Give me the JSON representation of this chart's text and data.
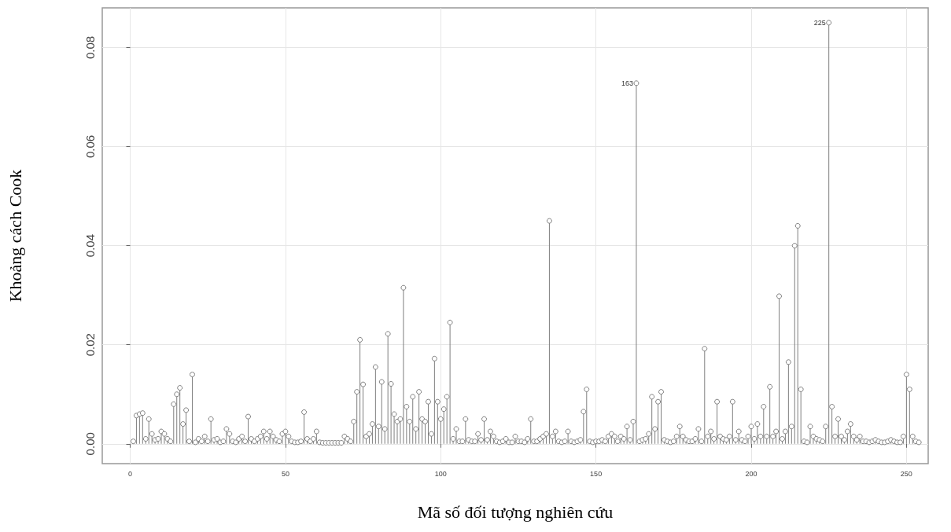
{
  "chart_data": {
    "type": "lollipop",
    "xlabel": "Mã số đối tượng nghiên cứu",
    "ylabel": "Khoảng cách Cook",
    "x": [
      1,
      2,
      3,
      4,
      5,
      6,
      7,
      8,
      9,
      10,
      11,
      12,
      13,
      14,
      15,
      16,
      17,
      18,
      19,
      20,
      21,
      22,
      23,
      24,
      25,
      26,
      27,
      28,
      29,
      30,
      31,
      32,
      33,
      34,
      35,
      36,
      37,
      38,
      39,
      40,
      41,
      42,
      43,
      44,
      45,
      46,
      47,
      48,
      49,
      50,
      51,
      52,
      53,
      54,
      55,
      56,
      57,
      58,
      59,
      60,
      61,
      62,
      63,
      64,
      65,
      66,
      67,
      68,
      69,
      70,
      71,
      72,
      73,
      74,
      75,
      76,
      77,
      78,
      79,
      80,
      81,
      82,
      83,
      84,
      85,
      86,
      87,
      88,
      89,
      90,
      91,
      92,
      93,
      94,
      95,
      96,
      97,
      98,
      99,
      100,
      101,
      102,
      103,
      104,
      105,
      106,
      107,
      108,
      109,
      110,
      111,
      112,
      113,
      114,
      115,
      116,
      117,
      118,
      119,
      120,
      121,
      122,
      123,
      124,
      125,
      126,
      127,
      128,
      129,
      130,
      131,
      132,
      133,
      134,
      135,
      136,
      137,
      138,
      139,
      140,
      141,
      142,
      143,
      144,
      145,
      146,
      147,
      148,
      149,
      150,
      151,
      152,
      153,
      154,
      155,
      156,
      157,
      158,
      159,
      160,
      161,
      162,
      163,
      164,
      165,
      166,
      167,
      168,
      169,
      170,
      171,
      172,
      173,
      174,
      175,
      176,
      177,
      178,
      179,
      180,
      181,
      182,
      183,
      184,
      185,
      186,
      187,
      188,
      189,
      190,
      191,
      192,
      193,
      194,
      195,
      196,
      197,
      198,
      199,
      200,
      201,
      202,
      203,
      204,
      205,
      206,
      207,
      208,
      209,
      210,
      211,
      212,
      213,
      214,
      215,
      216,
      217,
      218,
      219,
      220,
      221,
      222,
      223,
      224,
      225,
      226,
      227,
      228,
      229,
      230,
      231,
      232,
      233,
      234,
      235,
      236,
      237,
      238,
      239,
      240,
      241,
      242,
      243,
      244,
      245,
      246,
      247,
      248,
      249,
      250,
      251,
      252,
      253,
      254
    ],
    "values": [
      0.0005,
      0.0057,
      0.006,
      0.0062,
      0.001,
      0.005,
      0.002,
      0.0008,
      0.001,
      0.0025,
      0.002,
      0.001,
      0.0005,
      0.008,
      0.01,
      0.0113,
      0.004,
      0.0068,
      0.0005,
      0.014,
      0.0003,
      0.001,
      0.0005,
      0.0015,
      0.0005,
      0.005,
      0.0008,
      0.001,
      0.0003,
      0.0005,
      0.003,
      0.002,
      0.0005,
      0.0003,
      0.001,
      0.0015,
      0.0005,
      0.0055,
      0.001,
      0.0005,
      0.001,
      0.0015,
      0.0025,
      0.001,
      0.0025,
      0.0015,
      0.0008,
      0.0005,
      0.002,
      0.0025,
      0.0015,
      0.0005,
      0.0003,
      0.0003,
      0.0005,
      0.0064,
      0.001,
      0.0005,
      0.001,
      0.0025,
      0.0003,
      0.0002,
      0.0002,
      0.0002,
      0.0002,
      0.0002,
      0.0002,
      0.0002,
      0.0015,
      0.001,
      0.0005,
      0.0045,
      0.0105,
      0.021,
      0.012,
      0.0015,
      0.002,
      0.004,
      0.0155,
      0.0035,
      0.0125,
      0.003,
      0.0222,
      0.0121,
      0.006,
      0.0045,
      0.005,
      0.0315,
      0.0075,
      0.0045,
      0.0095,
      0.003,
      0.0105,
      0.005,
      0.0045,
      0.0085,
      0.002,
      0.0172,
      0.0085,
      0.005,
      0.007,
      0.0095,
      0.0245,
      0.001,
      0.003,
      0.0005,
      0.0005,
      0.005,
      0.0008,
      0.0005,
      0.0005,
      0.002,
      0.0008,
      0.005,
      0.0008,
      0.0025,
      0.0015,
      0.0005,
      0.0003,
      0.0005,
      0.001,
      0.0003,
      0.0003,
      0.0015,
      0.0005,
      0.0005,
      0.0003,
      0.001,
      0.005,
      0.0005,
      0.0005,
      0.001,
      0.0015,
      0.002,
      0.045,
      0.0015,
      0.0025,
      0.0005,
      0.0003,
      0.0005,
      0.0025,
      0.0005,
      0.0003,
      0.0005,
      0.0008,
      0.0065,
      0.011,
      0.0005,
      0.0003,
      0.0005,
      0.0005,
      0.0008,
      0.0005,
      0.0015,
      0.002,
      0.0015,
      0.0005,
      0.0015,
      0.001,
      0.0035,
      0.0008,
      0.0045,
      0.0728,
      0.0005,
      0.0008,
      0.001,
      0.002,
      0.0095,
      0.003,
      0.0085,
      0.0105,
      0.0008,
      0.0005,
      0.0003,
      0.0005,
      0.0015,
      0.0035,
      0.0015,
      0.0008,
      0.0005,
      0.0005,
      0.001,
      0.003,
      0.0005,
      0.0192,
      0.0015,
      0.0025,
      0.001,
      0.0085,
      0.0015,
      0.001,
      0.0008,
      0.0015,
      0.0085,
      0.0008,
      0.0025,
      0.0008,
      0.0005,
      0.0015,
      0.0035,
      0.001,
      0.004,
      0.0015,
      0.0075,
      0.0015,
      0.0115,
      0.0015,
      0.0025,
      0.0298,
      0.001,
      0.0025,
      0.0165,
      0.0035,
      0.04,
      0.044,
      0.011,
      0.0005,
      0.0003,
      0.0035,
      0.0015,
      0.001,
      0.0008,
      0.0005,
      0.0035,
      0.085,
      0.0075,
      0.0015,
      0.005,
      0.0015,
      0.0008,
      0.0025,
      0.004,
      0.0015,
      0.0008,
      0.0015,
      0.0005,
      0.0005,
      0.0003,
      0.0005,
      0.0008,
      0.0005,
      0.0003,
      0.0003,
      0.0005,
      0.0008,
      0.0005,
      0.0003,
      0.0003,
      0.0015,
      0.014,
      0.011,
      0.0015,
      0.0005,
      0.0003
    ],
    "color": "#7f7f7f",
    "marker": "circle",
    "annotations": [
      {
        "text": "163",
        "x": 163,
        "y": 0.0728
      },
      {
        "text": "225",
        "x": 225,
        "y": 0.085
      }
    ],
    "xlim": [
      -9,
      257
    ],
    "xticks": [
      0,
      50,
      100,
      150,
      200,
      250
    ],
    "ylim": [
      -0.004,
      0.088
    ],
    "yticks": [
      {
        "value": 0,
        "label": "0.00"
      },
      {
        "value": 0.02,
        "label": "0.02"
      },
      {
        "value": 0.04,
        "label": "0.04"
      },
      {
        "value": 0.06,
        "label": "0.06"
      },
      {
        "value": 0.08,
        "label": "0.08"
      }
    ],
    "grid": true
  }
}
